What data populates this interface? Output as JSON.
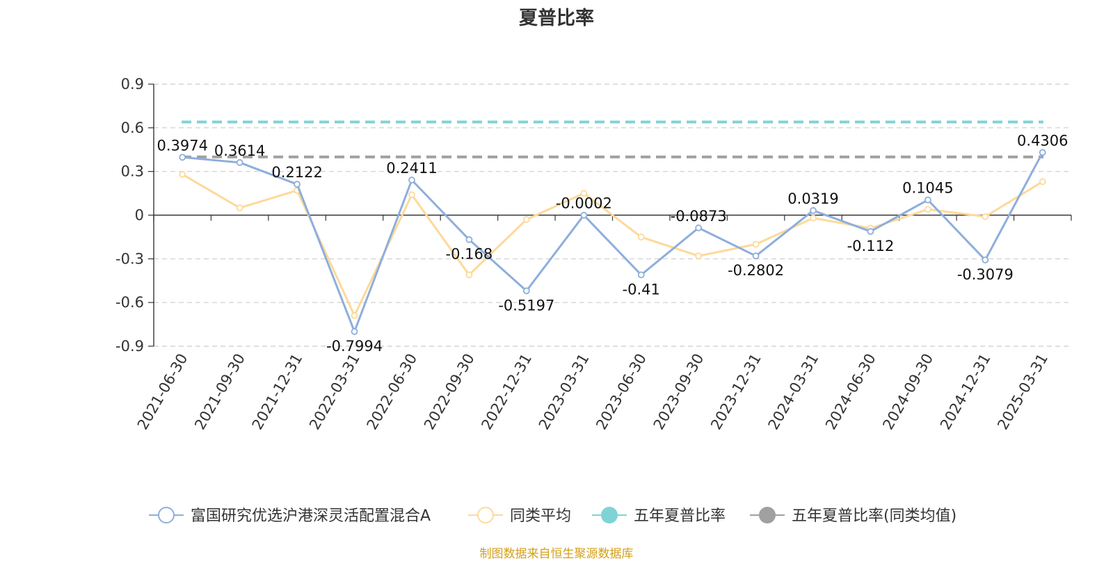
{
  "chart_data": {
    "type": "line",
    "title": "夏普比率",
    "categories": [
      "2021-06-30",
      "2021-09-30",
      "2021-12-31",
      "2022-03-31",
      "2022-06-30",
      "2022-09-30",
      "2022-12-31",
      "2023-03-31",
      "2023-06-30",
      "2023-09-30",
      "2023-12-31",
      "2024-03-31",
      "2024-06-30",
      "2024-09-30",
      "2024-12-31",
      "2025-03-31"
    ],
    "y_ticks": [
      "0.9",
      "0.6",
      "0.3",
      "0",
      "-0.3",
      "-0.6",
      "-0.9"
    ],
    "ylim": [
      -0.9,
      0.9
    ],
    "grid": true,
    "legend_position": "bottom",
    "series": [
      {
        "name": "富国研究优选沪港深灵活配置混合A",
        "color": "#8eaedc",
        "values": [
          0.3974,
          0.3614,
          0.2122,
          -0.7994,
          0.2411,
          -0.168,
          -0.5197,
          -0.0002,
          -0.41,
          -0.0873,
          -0.2802,
          0.0319,
          -0.112,
          0.1045,
          -0.3079,
          0.4306
        ],
        "labels": [
          "0.3974",
          "0.3614",
          "0.2122",
          "-0.7994",
          "0.2411",
          "-0.168",
          "-0.5197",
          "-0.0002",
          "-0.41",
          "-0.0873",
          "-0.2802",
          "0.0319",
          "-0.112",
          "0.1045",
          "-0.3079",
          "0.4306"
        ]
      },
      {
        "name": "同类平均",
        "color": "#fdd999",
        "values": [
          0.28,
          0.05,
          0.17,
          -0.69,
          0.14,
          -0.41,
          -0.03,
          0.15,
          -0.15,
          -0.28,
          -0.2,
          -0.02,
          -0.09,
          0.04,
          -0.01,
          0.23
        ]
      }
    ],
    "reference_lines": [
      {
        "name": "五年夏普比率",
        "color": "#7fd3d6",
        "value": 0.64
      },
      {
        "name": "五年夏普比率(同类均值)",
        "color": "#a0a0a0",
        "value": 0.4
      }
    ]
  },
  "source_note": "制图数据来自恒生聚源数据库"
}
